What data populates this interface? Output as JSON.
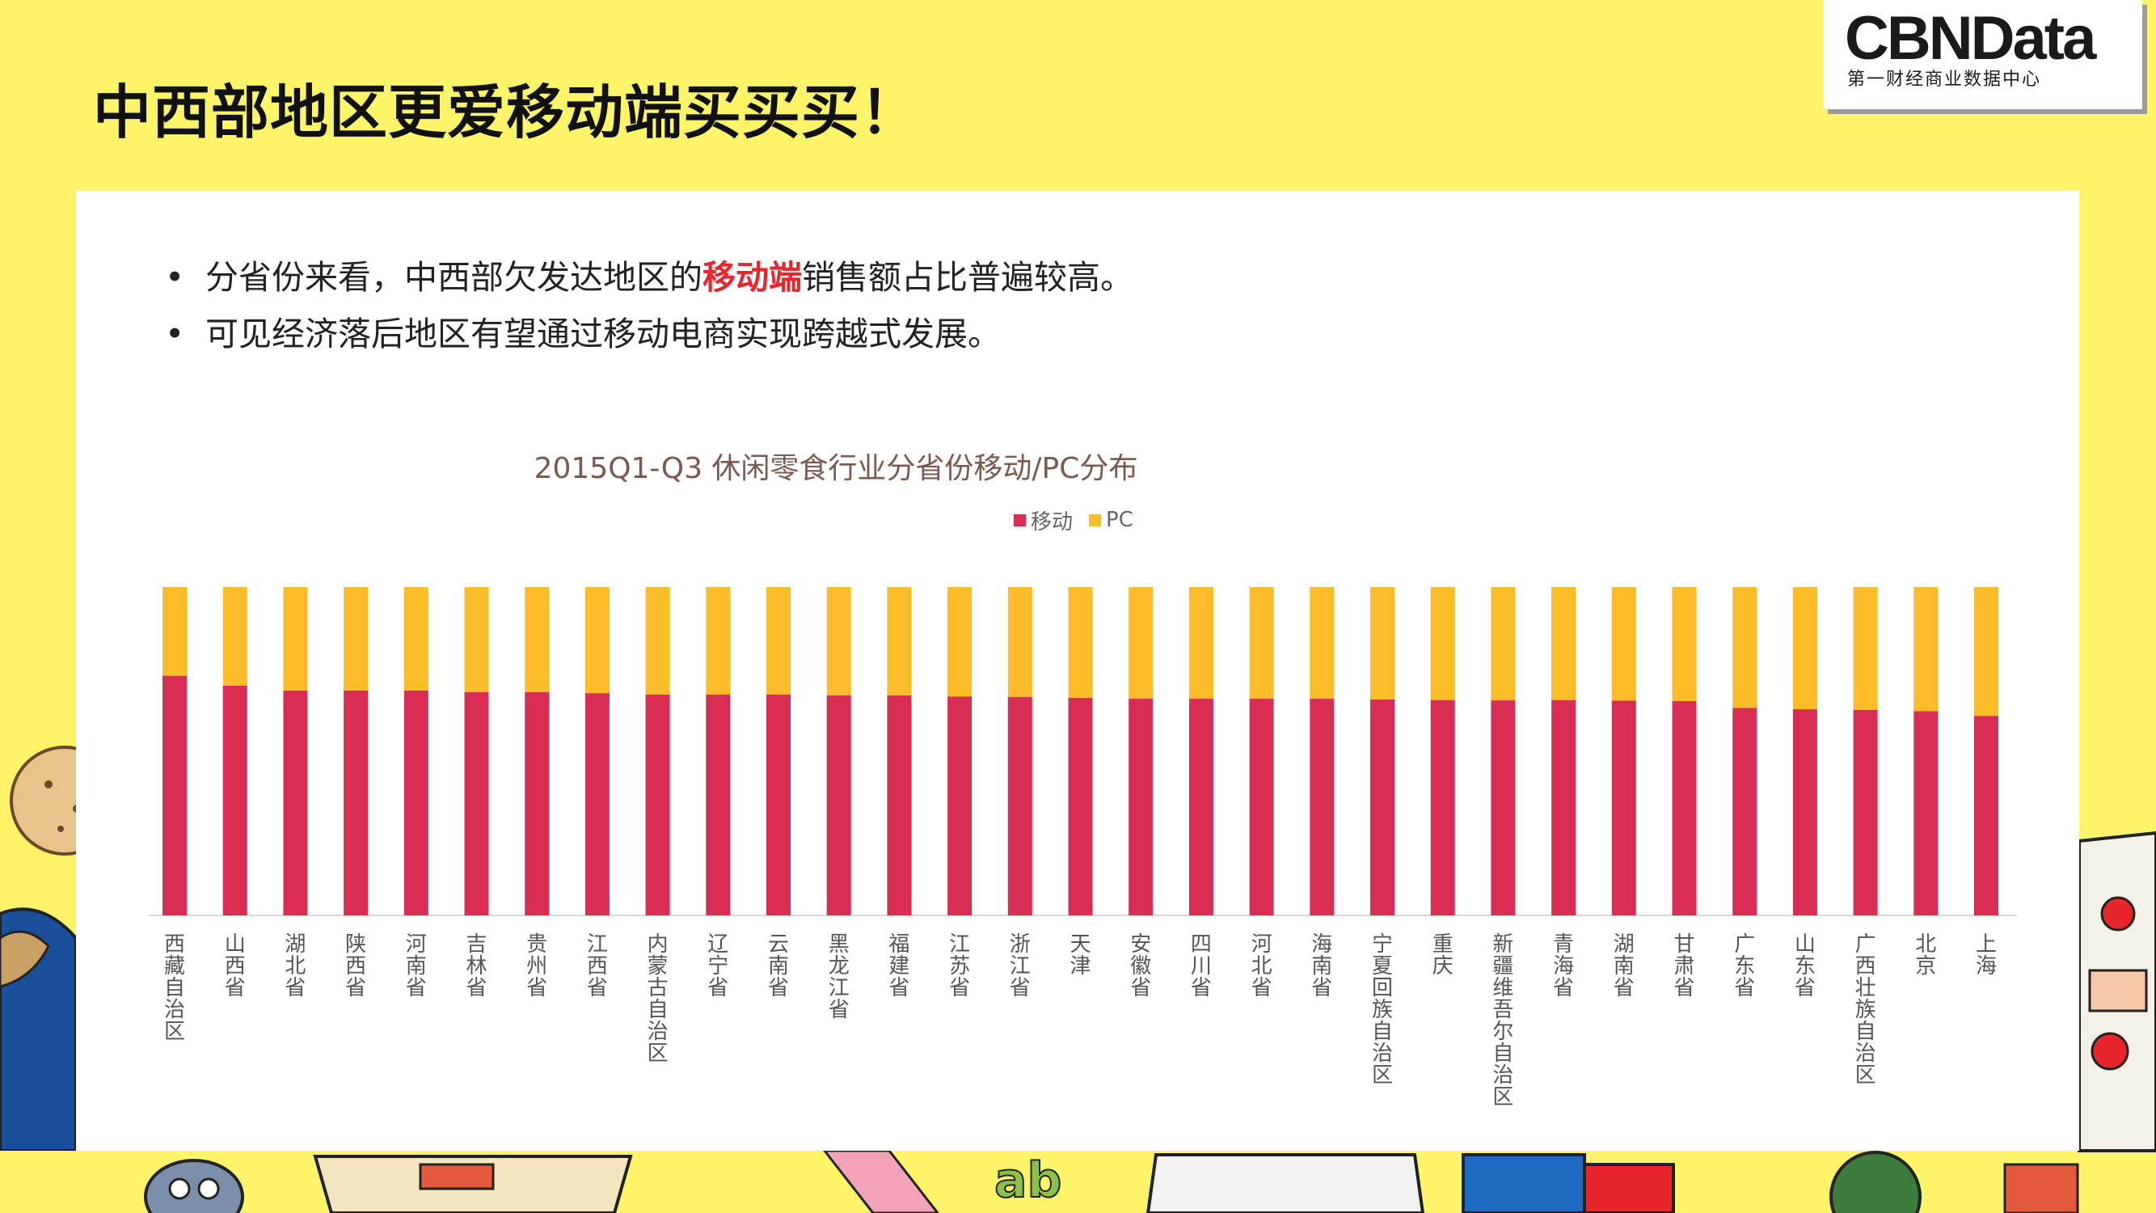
{
  "header": {
    "title": "中西部地区更爱移动端买买买！",
    "logo_main": "CBNData",
    "logo_sub": "第一财经商业数据中心"
  },
  "bullets": [
    {
      "prefix": "分省份来看，中西部欠发达地区的",
      "highlight": "移动端",
      "suffix": "销售额占比普遍较高。"
    },
    {
      "prefix": "可见经济落后地区有望通过移动电商实现跨越式发展。",
      "highlight": "",
      "suffix": ""
    }
  ],
  "chart_data": {
    "type": "bar",
    "stacked": true,
    "title": "2015Q1-Q3 休闲零食行业分省份移动/PC分布",
    "categories": [
      "西藏自治区",
      "山西省",
      "湖北省",
      "陕西省",
      "河南省",
      "吉林省",
      "贵州省",
      "江西省",
      "内蒙古自治区",
      "辽宁省",
      "云南省",
      "黑龙江省",
      "福建省",
      "江苏省",
      "浙江省",
      "天津",
      "安徽省",
      "四川省",
      "河北省",
      "海南省",
      "宁夏回族自治区",
      "重庆",
      "新疆维吾尔自治区",
      "青海省",
      "湖南省",
      "甘肃省",
      "广东省",
      "山东省",
      "广西壮族自治区",
      "北京",
      "上海"
    ],
    "series": [
      {
        "name": "移动",
        "color": "#d92e54",
        "values": [
          73,
          70,
          68.5,
          68.5,
          68.5,
          68,
          68,
          67.7,
          67.3,
          67.3,
          67.3,
          67,
          67,
          66.7,
          66.5,
          66.3,
          66,
          66,
          66,
          66,
          65.8,
          65.6,
          65.5,
          65.6,
          65.4,
          65.3,
          63.2,
          62.8,
          62.6,
          62.2,
          60.8
        ]
      },
      {
        "name": "PC",
        "color": "#fcbc2a",
        "values": [
          27,
          30,
          31.5,
          31.5,
          31.5,
          32,
          32,
          32.3,
          32.7,
          32.7,
          32.7,
          33,
          33,
          33.3,
          33.5,
          33.7,
          34,
          34,
          34,
          34,
          34.2,
          34.4,
          34.5,
          34.4,
          34.6,
          34.7,
          36.8,
          37.2,
          37.4,
          37.8,
          39.2
        ]
      }
    ],
    "ylim": [
      0,
      100
    ],
    "legend": "top",
    "grid": false
  }
}
